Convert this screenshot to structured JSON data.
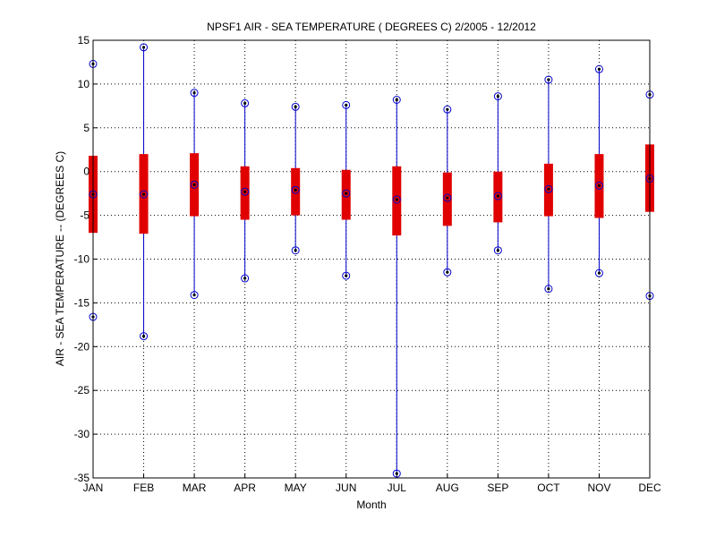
{
  "chart_data": {
    "type": "boxplot",
    "title": "NPSF1  AIR - SEA TEMPERATURE ( DEGREES C) 2/2005 - 12/2012",
    "xlabel": "Month",
    "ylabel": "AIR - SEA TEMPERATURE -- (DEGREES C)",
    "ylim": [
      -35,
      15
    ],
    "yticks": [
      15,
      10,
      5,
      0,
      -5,
      -10,
      -15,
      -20,
      -25,
      -30,
      -35
    ],
    "grid": true,
    "categories": [
      "JAN",
      "FEB",
      "MAR",
      "APR",
      "MAY",
      "JUN",
      "JUL",
      "AUG",
      "SEP",
      "OCT",
      "NOV",
      "DEC"
    ],
    "max": [
      12.3,
      14.2,
      9.0,
      7.8,
      7.4,
      7.6,
      8.2,
      7.1,
      8.6,
      10.5,
      11.7,
      8.8
    ],
    "q3": [
      1.8,
      2.0,
      2.1,
      0.6,
      0.4,
      0.2,
      0.6,
      -0.1,
      0.0,
      0.9,
      2.0,
      3.1
    ],
    "median": [
      -2.6,
      -2.6,
      -1.5,
      -2.3,
      -2.1,
      -2.5,
      -3.2,
      -3.0,
      -2.8,
      -2.0,
      -1.6,
      -0.8
    ],
    "q1": [
      -7.0,
      -7.1,
      -5.1,
      -5.5,
      -5.0,
      -5.5,
      -7.3,
      -6.2,
      -5.8,
      -5.1,
      -5.3,
      -4.6
    ],
    "min": [
      -16.6,
      -18.8,
      -14.1,
      -12.2,
      -9.0,
      -11.9,
      -34.5,
      -11.5,
      -9.0,
      -13.4,
      -11.6,
      -14.2
    ],
    "colors": {
      "box": "#e00000",
      "whisker": "#0000cc",
      "marker": "#0000cc",
      "dot": "#000000"
    }
  }
}
